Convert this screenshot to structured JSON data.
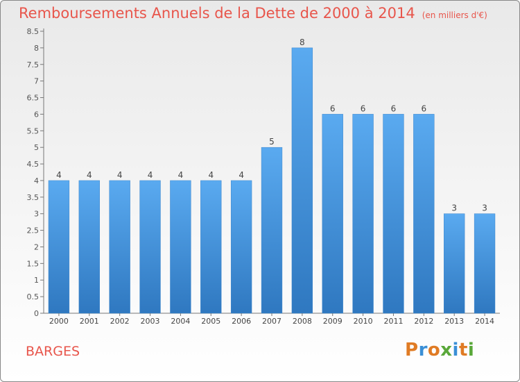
{
  "title": "Remboursements Annuels de la Dette de 2000 à 2014",
  "title_unit": "(en milliers d'€)",
  "place": "BARGES",
  "logo": {
    "text": "Proxiti",
    "colors": [
      "#e07b24",
      "#3a8fd6",
      "#e07b24",
      "#5aa83a",
      "#3a8fd6",
      "#e07b24",
      "#5aa83a"
    ]
  },
  "colors": {
    "title": "#e8554b",
    "bar_top": "#5aaaf0",
    "bar_bottom": "#2f78c0",
    "grid": "#aaaaaa"
  },
  "chart_data": {
    "type": "bar",
    "categories": [
      "2000",
      "2001",
      "2002",
      "2003",
      "2004",
      "2005",
      "2006",
      "2007",
      "2008",
      "2009",
      "2010",
      "2011",
      "2012",
      "2013",
      "2014"
    ],
    "values": [
      4,
      4,
      4,
      4,
      4,
      4,
      4,
      5,
      8,
      6,
      6,
      6,
      6,
      3,
      3
    ],
    "data_labels": [
      "4",
      "4",
      "4",
      "4",
      "4",
      "4",
      "4",
      "5",
      "8",
      "6",
      "6",
      "6",
      "6",
      "3",
      "3"
    ],
    "ylim": [
      0,
      8.5
    ],
    "yticks": [
      "0",
      "0.5",
      "1",
      "1.5",
      "2",
      "2.5",
      "3",
      "3.5",
      "4",
      "4.5",
      "5",
      "5.5",
      "6",
      "6.5",
      "7",
      "7.5",
      "8",
      "8.5"
    ],
    "grid": false
  }
}
